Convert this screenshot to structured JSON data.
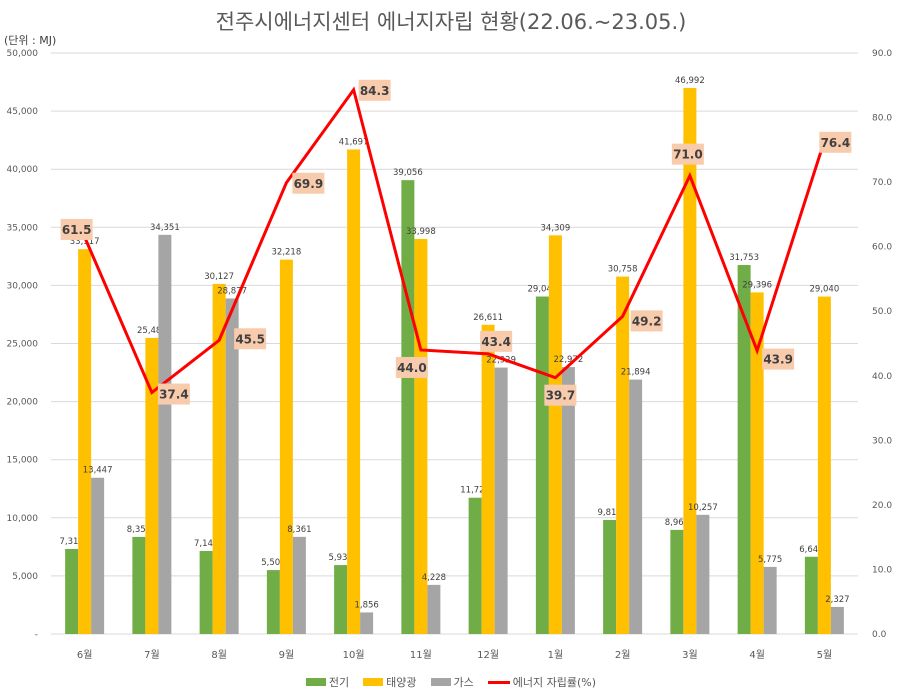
{
  "chart_data": {
    "type": "bar",
    "title": "전주시에너지센터 에너지자립 현황(22.06.~23.05.)",
    "unit_label": "(단위 : MJ)",
    "categories": [
      "6월",
      "7월",
      "8월",
      "9월",
      "10월",
      "11월",
      "12월",
      "1월",
      "2월",
      "3월",
      "4월",
      "5월"
    ],
    "series": [
      {
        "name": "전기",
        "type": "bar",
        "axis": "left",
        "color": "#70ad47",
        "values": [
          7319,
          8355,
          7142,
          5500,
          5933,
          39056,
          11728,
          29043,
          9815,
          8960,
          31753,
          6646
        ]
      },
      {
        "name": "태양광",
        "type": "bar",
        "axis": "left",
        "color": "#ffc000",
        "values": [
          33117,
          25481,
          30127,
          32218,
          41697,
          33998,
          26611,
          34309,
          30758,
          46992,
          29396,
          29040
        ]
      },
      {
        "name": "가스",
        "type": "bar",
        "axis": "left",
        "color": "#a5a5a5",
        "values": [
          13447,
          34351,
          28877,
          8361,
          1856,
          4228,
          22929,
          22972,
          21894,
          10257,
          5775,
          2327
        ]
      },
      {
        "name": "에너지 자립률(%)",
        "type": "line",
        "axis": "right",
        "color": "#ff0000",
        "values": [
          61.5,
          37.4,
          45.5,
          69.9,
          84.3,
          44.0,
          43.4,
          39.7,
          49.2,
          71.0,
          43.9,
          76.4
        ]
      }
    ],
    "left_axis": {
      "range": [
        0,
        50000
      ],
      "ticks": [
        "-",
        "5,000",
        "10,000",
        "15,000",
        "20,000",
        "25,000",
        "30,000",
        "35,000",
        "40,000",
        "45,000",
        "50,000"
      ]
    },
    "right_axis": {
      "range": [
        0,
        90
      ],
      "ticks": [
        "0.0",
        "10.0",
        "20.0",
        "30.0",
        "40.0",
        "50.0",
        "60.0",
        "70.0",
        "80.0",
        "90.0"
      ]
    },
    "label_bg": "#f8cbad",
    "grid": true,
    "legend": "bottom"
  }
}
